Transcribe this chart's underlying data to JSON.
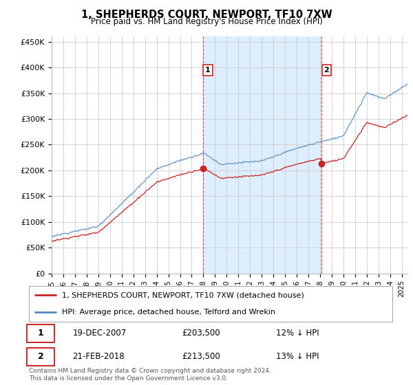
{
  "title": "1, SHEPHERDS COURT, NEWPORT, TF10 7XW",
  "subtitle": "Price paid vs. HM Land Registry's House Price Index (HPI)",
  "ylim": [
    0,
    460000
  ],
  "yticks": [
    0,
    50000,
    100000,
    150000,
    200000,
    250000,
    300000,
    350000,
    400000,
    450000
  ],
  "ytick_labels": [
    "£0",
    "£50K",
    "£100K",
    "£150K",
    "£200K",
    "£250K",
    "£300K",
    "£350K",
    "£400K",
    "£450K"
  ],
  "hpi_color": "#5588bb",
  "price_color": "#cc2222",
  "shade_color": "#ddeeff",
  "plot_bg_color": "#ffffff",
  "legend_label_price": "1, SHEPHERDS COURT, NEWPORT, TF10 7XW (detached house)",
  "legend_label_hpi": "HPI: Average price, detached house, Telford and Wrekin",
  "annotation1_label": "1",
  "annotation1_date": "19-DEC-2007",
  "annotation1_price": "£203,500",
  "annotation1_hpi": "12% ↓ HPI",
  "annotation2_label": "2",
  "annotation2_date": "21-FEB-2018",
  "annotation2_price": "£213,500",
  "annotation2_hpi": "13% ↓ HPI",
  "footer": "Contains HM Land Registry data © Crown copyright and database right 2024.\nThis data is licensed under the Open Government Licence v3.0.",
  "purchase1_x": 2007.96,
  "purchase1_y": 203500,
  "purchase2_x": 2018.12,
  "purchase2_y": 213500,
  "xmin": 1995,
  "xmax": 2025.5
}
